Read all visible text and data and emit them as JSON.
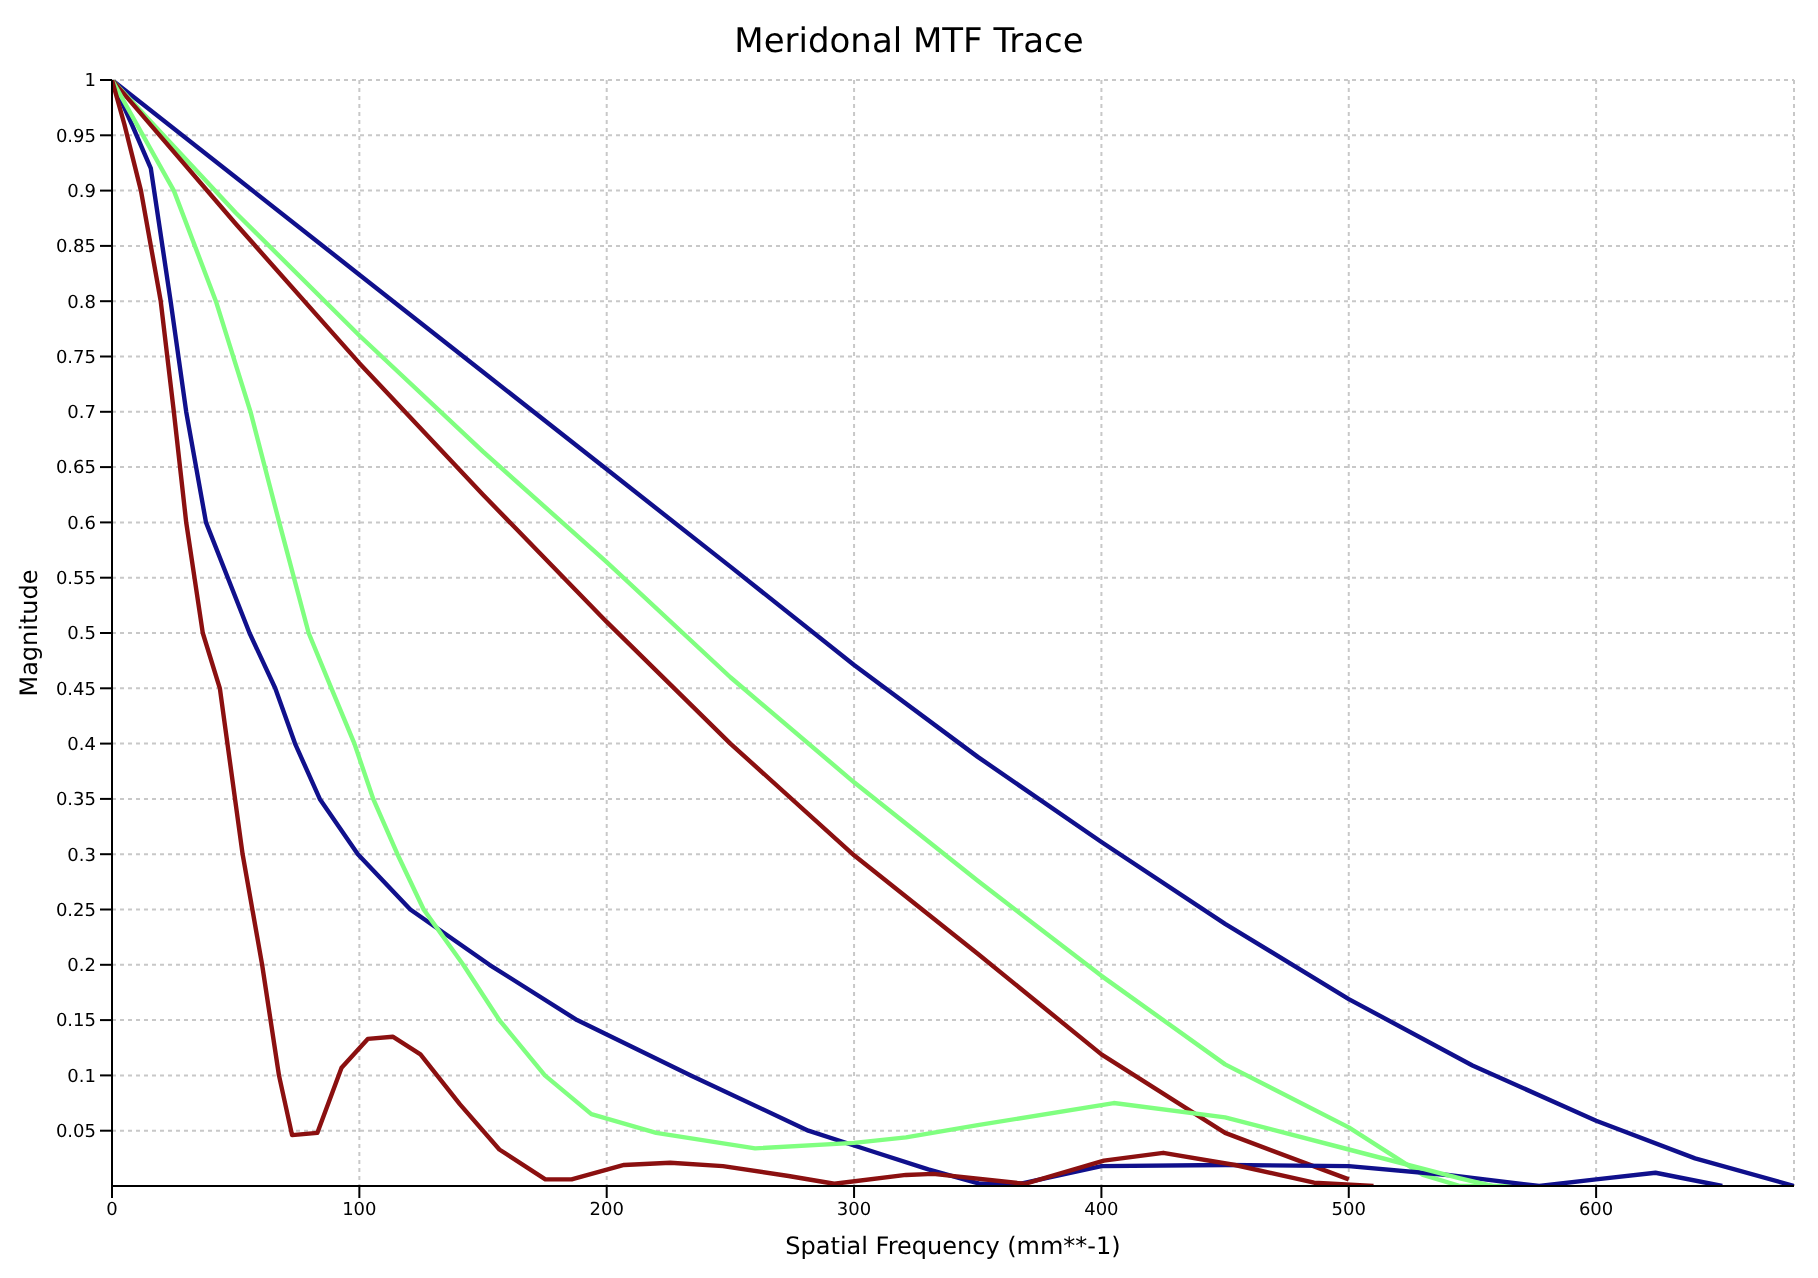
{
  "chart_data": {
    "type": "line",
    "title": "Meridonal MTF Trace",
    "xlabel": "Spatial Frequency (mm**-1)",
    "ylabel": "Magnitude",
    "xlim": [
      0,
      680
    ],
    "ylim": [
      0,
      1
    ],
    "xticks": [
      0,
      100,
      200,
      300,
      400,
      500,
      600
    ],
    "yticks": [
      0.05,
      0.1,
      0.15,
      0.2,
      0.25,
      0.3,
      0.35,
      0.4,
      0.45,
      0.5,
      0.55,
      0.6,
      0.65,
      0.7,
      0.75,
      0.8,
      0.85,
      0.9,
      0.95,
      1
    ],
    "grid": true,
    "marker": "none",
    "line_style": "solid",
    "series": [
      {
        "color": "#10108c",
        "x": [
          0,
          50,
          100,
          150,
          200,
          250,
          300,
          350,
          400,
          450,
          500,
          550,
          600,
          640,
          680
        ],
        "values": [
          1,
          0.912,
          0.824,
          0.736,
          0.648,
          0.56,
          0.471,
          0.388,
          0.311,
          0.237,
          0.169,
          0.109,
          0.059,
          0.025,
          0
        ]
      },
      {
        "color": "#80ff80",
        "x": [
          0,
          50,
          100,
          150,
          200,
          250,
          300,
          350,
          400,
          450,
          500,
          530,
          545,
          570
        ],
        "values": [
          1,
          0.88,
          0.769,
          0.664,
          0.564,
          0.46,
          0.365,
          0.276,
          0.19,
          0.11,
          0.053,
          0.01,
          0,
          0
        ]
      },
      {
        "color": "#8b1010",
        "x": [
          0,
          50,
          100,
          150,
          200,
          250,
          300,
          350,
          400,
          450,
          500
        ],
        "values": [
          1,
          0.87,
          0.744,
          0.625,
          0.51,
          0.4,
          0.299,
          0.21,
          0.119,
          0.048,
          0.006
        ]
      },
      {
        "color": "#10108c",
        "x": [
          0,
          8,
          15.7,
          23.7,
          30,
          38,
          55.6,
          66,
          74,
          84,
          99.4,
          120.6,
          152.6,
          188,
          234,
          281.5,
          305,
          330,
          351,
          367,
          400,
          450,
          500,
          540,
          577,
          600,
          624,
          651
        ],
        "values": [
          1,
          0.96,
          0.92,
          0.8,
          0.7,
          0.6,
          0.5,
          0.45,
          0.4,
          0.35,
          0.3,
          0.25,
          0.2,
          0.15,
          0.1,
          0.05,
          0.033,
          0.015,
          0.002,
          0.002,
          0.018,
          0.019,
          0.018,
          0.01,
          0,
          0.006,
          0.012,
          0
        ]
      },
      {
        "color": "#80ff80",
        "x": [
          0,
          10,
          25,
          42,
          56,
          67.6,
          79.5,
          88.7,
          98,
          105.6,
          115.4,
          126,
          142,
          156.6,
          175,
          193.8,
          220,
          260,
          300,
          321,
          350,
          405,
          450,
          500,
          545,
          558
        ],
        "values": [
          1,
          0.96,
          0.9,
          0.8,
          0.7,
          0.6,
          0.5,
          0.45,
          0.4,
          0.35,
          0.3,
          0.25,
          0.2,
          0.15,
          0.1,
          0.065,
          0.048,
          0.034,
          0.039,
          0.044,
          0.055,
          0.075,
          0.062,
          0.033,
          0.007,
          0
        ]
      },
      {
        "color": "#8b1010",
        "x": [
          0,
          5,
          11.7,
          19.7,
          25,
          30,
          36.7,
          43.6,
          52.8,
          60.7,
          67.5,
          72.8,
          83,
          92.8,
          103.4,
          113.5,
          124.7,
          140.6,
          156.6,
          175.2,
          185.8,
          207,
          225.7,
          247,
          273.5,
          292,
          321,
          332,
          369,
          401,
          425,
          454,
          486,
          510
        ],
        "values": [
          1,
          0.96,
          0.9,
          0.8,
          0.7,
          0.6,
          0.5,
          0.45,
          0.3,
          0.2,
          0.1,
          0.046,
          0.048,
          0.107,
          0.133,
          0.135,
          0.119,
          0.074,
          0.033,
          0.006,
          0.006,
          0.019,
          0.021,
          0.018,
          0.009,
          0.002,
          0.01,
          0.011,
          0.002,
          0.023,
          0.03,
          0.019,
          0.003,
          0
        ]
      }
    ]
  }
}
